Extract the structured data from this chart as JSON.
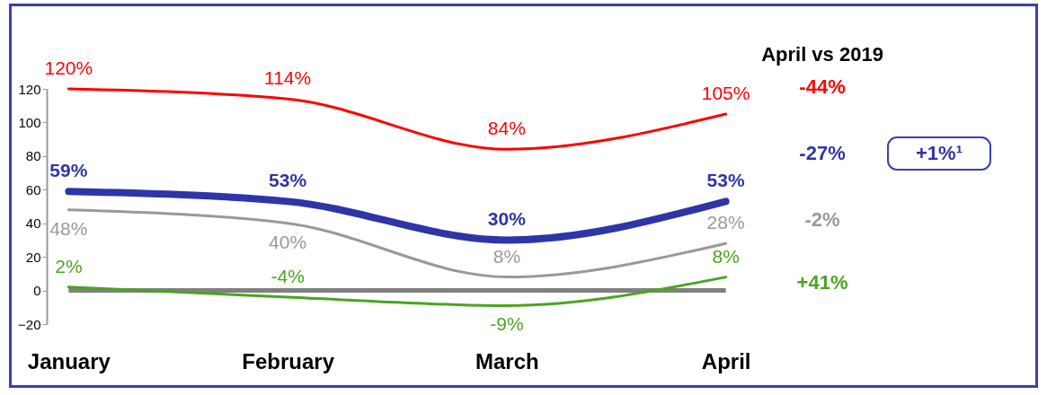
{
  "chart_data": {
    "type": "line",
    "categories": [
      "January",
      "February",
      "March",
      "April"
    ],
    "series": [
      {
        "color": "#ff0000",
        "values": [
          120,
          114,
          84,
          105
        ],
        "value_labels": [
          "120%",
          "114%",
          "84%",
          "105%"
        ]
      },
      {
        "color": "#2e35a8",
        "values": [
          59,
          53,
          30,
          53
        ],
        "value_labels": [
          "59%",
          "53%",
          "30%",
          "53%"
        ]
      },
      {
        "color": "#999999",
        "values": [
          48,
          40,
          8,
          28
        ],
        "value_labels": [
          "48%",
          "40%",
          "8%",
          "28%"
        ]
      },
      {
        "color": "#4aa520",
        "values": [
          2,
          -4,
          -9,
          8
        ],
        "value_labels": [
          "2%",
          "-4%",
          "-9%",
          "8%"
        ]
      }
    ],
    "ylim": [
      -20,
      120
    ],
    "yticks": [
      -20,
      0,
      20,
      40,
      60,
      80,
      100,
      120
    ],
    "ref_lines": [
      {
        "axis": "y",
        "value": 0,
        "color": "#808080"
      }
    ],
    "grid": false,
    "marker": "none",
    "annotations": [
      "April vs 2019",
      "-44%",
      "-27%",
      "+1%¹",
      "-2%",
      "+41%"
    ]
  }
}
